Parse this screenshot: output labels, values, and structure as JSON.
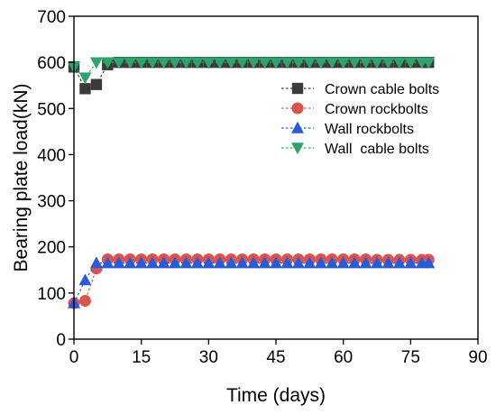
{
  "chart_data": {
    "type": "scatter",
    "xlabel": "Time (days)",
    "ylabel": "Bearing plate load(kN)",
    "xlim": [
      0,
      90
    ],
    "ylim": [
      0,
      700
    ],
    "xticks": [
      0,
      15,
      30,
      45,
      60,
      75,
      90
    ],
    "yticks": [
      0,
      100,
      200,
      300,
      400,
      500,
      600,
      700
    ],
    "grid": false,
    "legend_position": "top-right",
    "x": [
      0,
      2.5,
      5,
      7.5,
      10,
      12.5,
      15,
      17.5,
      20,
      22.5,
      25,
      27.5,
      30,
      32.5,
      35,
      37.5,
      40,
      42.5,
      45,
      47.5,
      50,
      52.5,
      55,
      57.5,
      60,
      62.5,
      65,
      67.5,
      70,
      72.5,
      75,
      77.5,
      79
    ],
    "series": [
      {
        "name": "Crown cable bolts",
        "color": "#3a3a3a",
        "marker": "square",
        "values": [
          590,
          543,
          552,
          595,
          600,
          600,
          600,
          600,
          600,
          600,
          600,
          600,
          600,
          600,
          600,
          600,
          600,
          600,
          600,
          600,
          600,
          600,
          600,
          600,
          600,
          600,
          600,
          600,
          600,
          600,
          600,
          600,
          600
        ]
      },
      {
        "name": "Crown rockbolts",
        "color": "#d9534f",
        "marker": "circle",
        "values": [
          78,
          83,
          153,
          173,
          173,
          173,
          173,
          173,
          173,
          173,
          173,
          173,
          173,
          173,
          173,
          173,
          173,
          173,
          173,
          173,
          173,
          173,
          173,
          173,
          173,
          173,
          173,
          172,
          172,
          172,
          172,
          172,
          172
        ]
      },
      {
        "name": "Wall rockbolts",
        "color": "#2a5bd7",
        "marker": "triangle-up",
        "values": [
          78,
          128,
          165,
          165,
          165,
          165,
          165,
          165,
          165,
          165,
          165,
          165,
          165,
          165,
          165,
          165,
          165,
          165,
          165,
          165,
          165,
          165,
          165,
          165,
          165,
          165,
          165,
          165,
          165,
          165,
          165,
          165,
          165
        ]
      },
      {
        "name": "Wall  cable bolts",
        "color": "#2ea36b",
        "marker": "triangle-down",
        "values": [
          590,
          567,
          600,
          600,
          600,
          600,
          600,
          600,
          600,
          600,
          600,
          600,
          600,
          600,
          600,
          600,
          600,
          600,
          600,
          600,
          600,
          600,
          600,
          600,
          600,
          600,
          600,
          600,
          600,
          600,
          600,
          600,
          600
        ]
      }
    ]
  }
}
